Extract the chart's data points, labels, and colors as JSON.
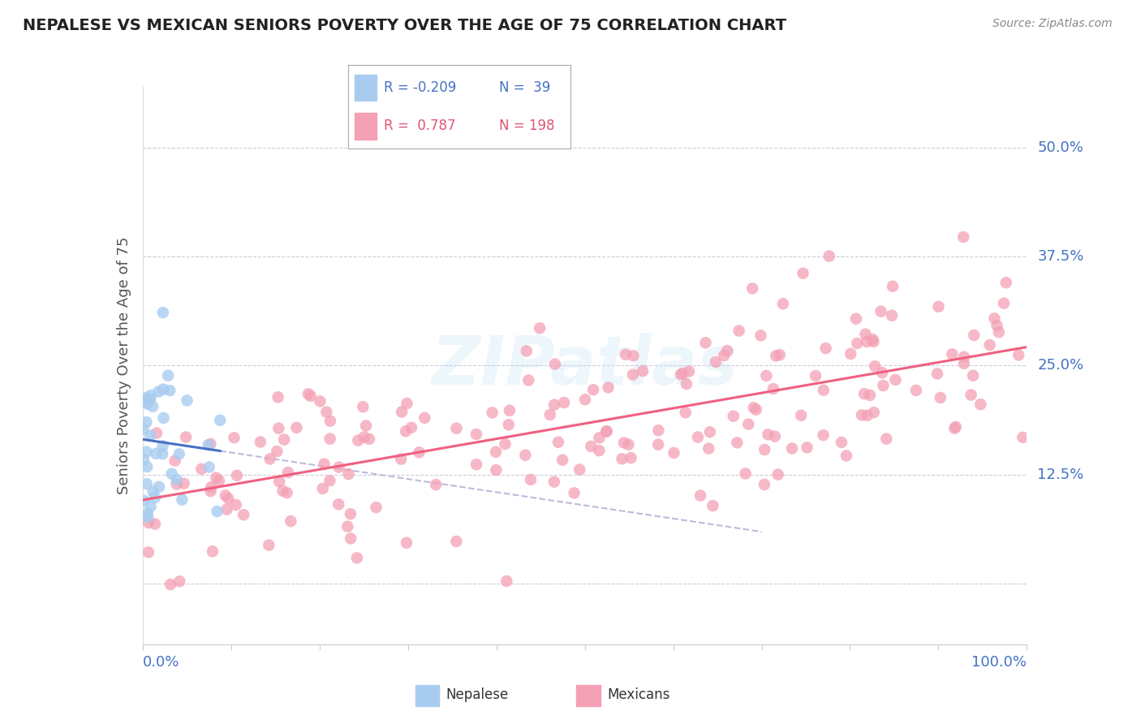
{
  "title": "NEPALESE VS MEXICAN SENIORS POVERTY OVER THE AGE OF 75 CORRELATION CHART",
  "source": "Source: ZipAtlas.com",
  "ylabel": "Seniors Poverty Over the Age of 75",
  "xlim": [
    0.0,
    1.0
  ],
  "ylim": [
    -0.07,
    0.57
  ],
  "yticks": [
    0.0,
    0.125,
    0.25,
    0.375,
    0.5
  ],
  "ytick_labels": [
    "",
    "12.5%",
    "25.0%",
    "37.5%",
    "50.0%"
  ],
  "watermark_text": "ZIPatlas",
  "legend_r_nepal": "-0.209",
  "legend_n_nepal": "39",
  "legend_r_mexican": "0.787",
  "legend_n_mexican": "198",
  "nepal_color": "#A8CCF0",
  "mexican_color": "#F4A0B5",
  "nepal_line_color": "#4472C4",
  "mexican_line_color": "#F06080",
  "dashed_line_color": "#BBBBDD",
  "background_color": "#FFFFFF",
  "grid_color": "#CCCCDD",
  "title_color": "#222222",
  "axis_label_color": "#555555",
  "tick_color_blue": "#4472C4",
  "source_color": "#888888",
  "legend_text_nepal": "#4472C4",
  "legend_text_mexican": "#E05575",
  "nepal_seed": 42,
  "mexican_seed": 99,
  "nepal_n": 39,
  "mexican_n": 198
}
